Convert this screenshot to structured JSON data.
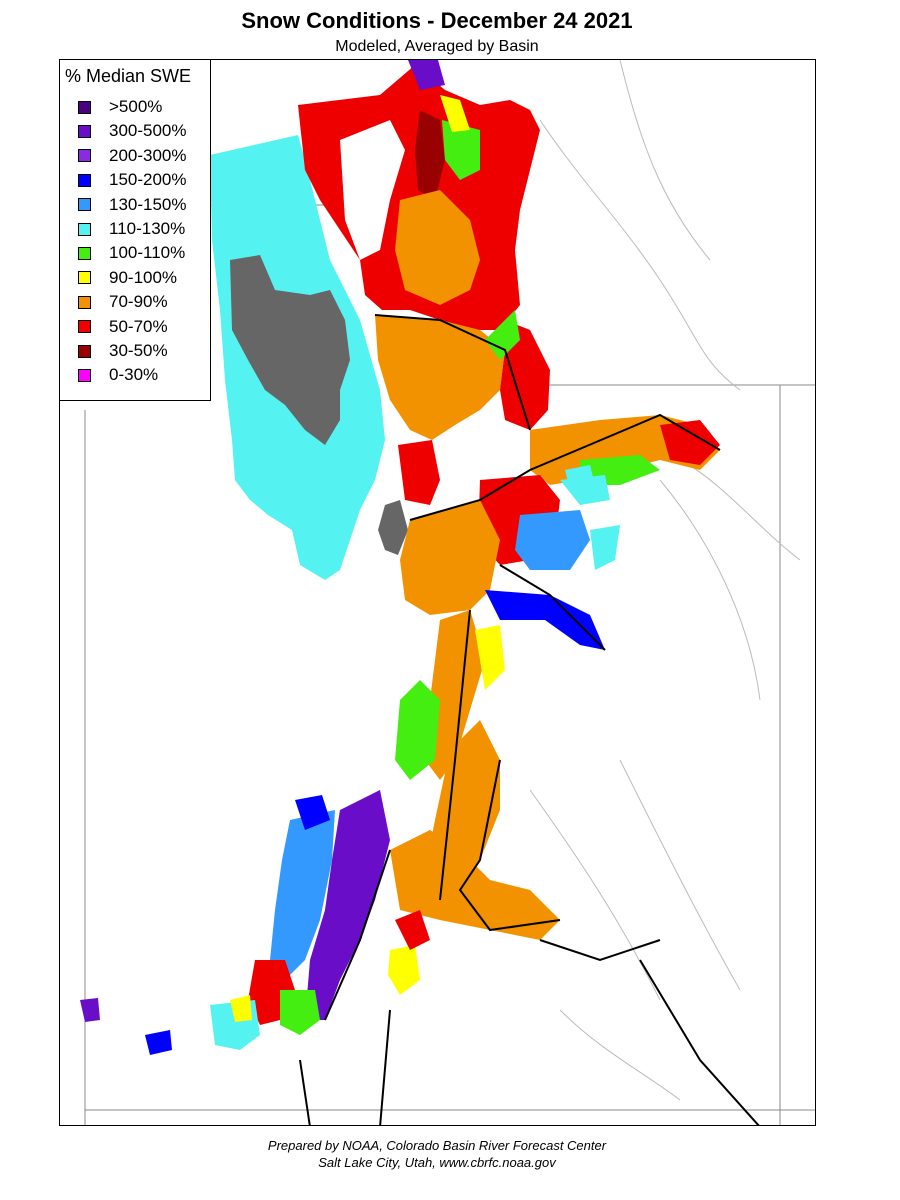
{
  "header": {
    "title": "Snow Conditions - December 24 2021",
    "subtitle": "Modeled, Averaged by Basin"
  },
  "legend": {
    "title": "% Median SWE",
    "items": [
      {
        "label": ">500%",
        "color": "#4b0082"
      },
      {
        "label": "300-500%",
        "color": "#6a0dc8"
      },
      {
        "label": "200-300%",
        "color": "#8a2be2"
      },
      {
        "label": "150-200%",
        "color": "#0000ff"
      },
      {
        "label": "130-150%",
        "color": "#3399ff"
      },
      {
        "label": "110-130%",
        "color": "#55f2f2"
      },
      {
        "label": "100-110%",
        "color": "#44ee11"
      },
      {
        "label": "90-100%",
        "color": "#ffff00"
      },
      {
        "label": "70-90%",
        "color": "#f39200"
      },
      {
        "label": "50-70%",
        "color": "#ee0000"
      },
      {
        "label": "30-50%",
        "color": "#990000"
      },
      {
        "label": "0-30%",
        "color": "#ff00ff"
      }
    ]
  },
  "map": {
    "lake_color": "#666666"
  },
  "credits": {
    "line1": "Prepared by NOAA, Colorado Basin River Forecast Center",
    "line2": "Salt Lake City, Utah, www.cbrfc.noaa.gov"
  }
}
